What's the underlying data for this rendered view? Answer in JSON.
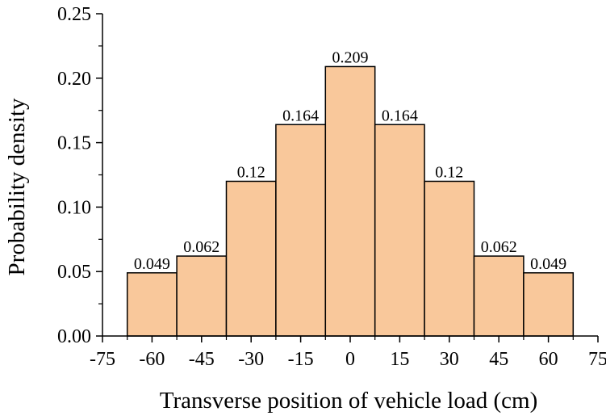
{
  "chart_data": {
    "type": "bar",
    "title": "",
    "xlabel": "Transverse position of vehicle load (cm)",
    "ylabel": "Probability density",
    "x": [
      -60,
      -45,
      -30,
      -15,
      0,
      15,
      30,
      45,
      60
    ],
    "bin_width": 15,
    "values": [
      0.049,
      0.062,
      0.12,
      0.164,
      0.209,
      0.164,
      0.12,
      0.062,
      0.049
    ],
    "data_labels": [
      "0.049",
      "0.062",
      "0.12",
      "0.164",
      "0.209",
      "0.164",
      "0.12",
      "0.062",
      "0.049"
    ],
    "xlim": [
      -75,
      75
    ],
    "ylim": [
      0,
      0.25
    ],
    "x_ticks": [
      -75,
      -60,
      -45,
      -30,
      -15,
      0,
      15,
      30,
      45,
      60,
      75
    ],
    "x_tick_labels": [
      "-75",
      "-60",
      "-45",
      "-30",
      "-15",
      "0",
      "15",
      "30",
      "45",
      "60",
      "75"
    ],
    "y_ticks": [
      0,
      0.05,
      0.1,
      0.15,
      0.2,
      0.25
    ],
    "y_tick_labels": [
      "0.00",
      "0.05",
      "0.10",
      "0.15",
      "0.20",
      "0.25"
    ],
    "bar_color": "#f9c89b",
    "grid": false
  }
}
